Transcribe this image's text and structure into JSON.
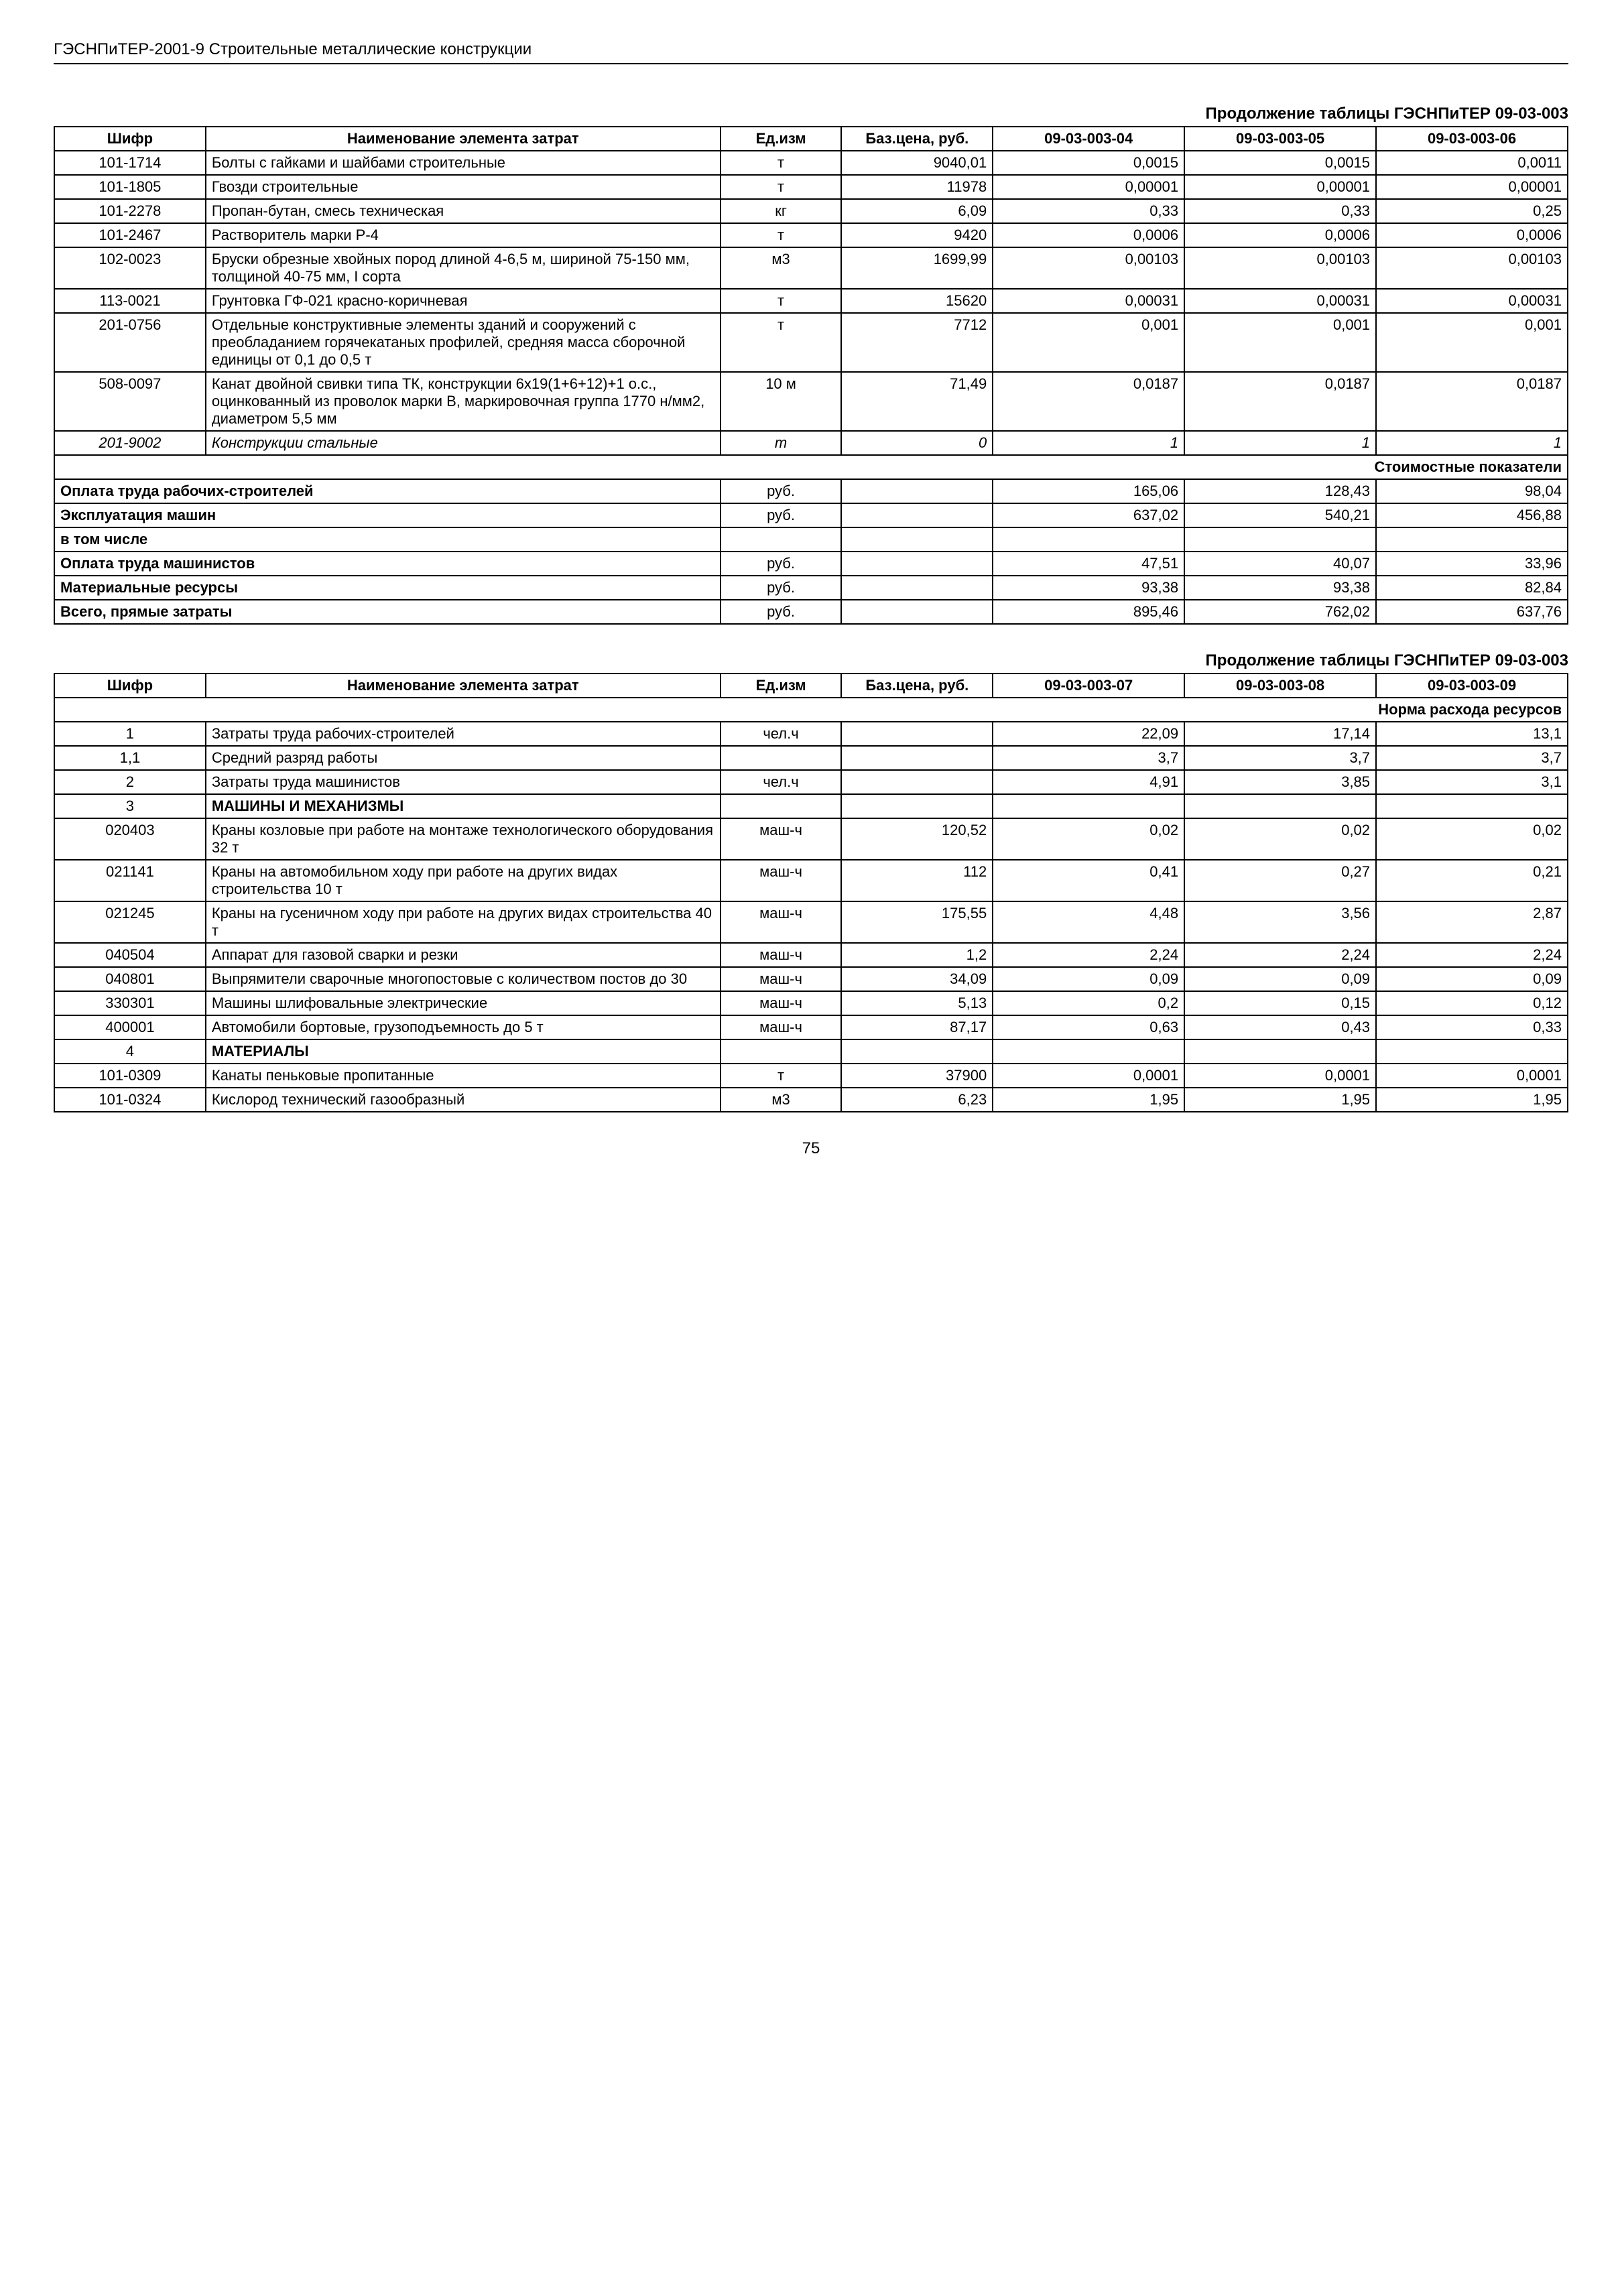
{
  "header": "ГЭСНПиТЕР-2001-9 Строительные металлические конструкции",
  "page_number": "75",
  "table1": {
    "caption": "Продолжение таблицы ГЭСНПиТЕР 09-03-003",
    "subcaption": "Стоимостные показатели",
    "headers": {
      "code": "Шифр",
      "name": "Наименование элемента затрат",
      "unit": "Ед.изм",
      "price": "Баз.цена, руб.",
      "c1": "09-03-003-04",
      "c2": "09-03-003-05",
      "c3": "09-03-003-06"
    },
    "rows": [
      {
        "code": "101-1714",
        "name": "Болты с гайками и шайбами строительные",
        "unit": "т",
        "price": "9040,01",
        "v1": "0,0015",
        "v2": "0,0015",
        "v3": "0,0011"
      },
      {
        "code": "101-1805",
        "name": "Гвозди строительные",
        "unit": "т",
        "price": "11978",
        "v1": "0,00001",
        "v2": "0,00001",
        "v3": "0,00001"
      },
      {
        "code": "101-2278",
        "name": "Пропан-бутан, смесь техническая",
        "unit": "кг",
        "price": "6,09",
        "v1": "0,33",
        "v2": "0,33",
        "v3": "0,25"
      },
      {
        "code": "101-2467",
        "name": "Растворитель марки Р-4",
        "unit": "т",
        "price": "9420",
        "v1": "0,0006",
        "v2": "0,0006",
        "v3": "0,0006"
      },
      {
        "code": "102-0023",
        "name": "Бруски обрезные хвойных пород длиной 4-6,5 м, шириной 75-150 мм, толщиной 40-75 мм, I сорта",
        "unit": "м3",
        "price": "1699,99",
        "v1": "0,00103",
        "v2": "0,00103",
        "v3": "0,00103"
      },
      {
        "code": "113-0021",
        "name": "Грунтовка ГФ-021 красно-коричневая",
        "unit": "т",
        "price": "15620",
        "v1": "0,00031",
        "v2": "0,00031",
        "v3": "0,00031"
      },
      {
        "code": "201-0756",
        "name": "Отдельные конструктивные элементы зданий и сооружений с преобладанием горячекатаных профилей, средняя масса сборочной единицы от 0,1 до 0,5 т",
        "unit": "т",
        "price": "7712",
        "v1": "0,001",
        "v2": "0,001",
        "v3": "0,001"
      },
      {
        "code": "508-0097",
        "name": "Канат двойной свивки типа ТК, конструкции 6х19(1+6+12)+1 о.с., оцинкованный из проволок марки В, маркировочная группа 1770 н/мм2, диаметром 5,5 мм",
        "unit": "10 м",
        "price": "71,49",
        "v1": "0,0187",
        "v2": "0,0187",
        "v3": "0,0187"
      },
      {
        "code": "201-9002",
        "name": "Конструкции стальные",
        "unit": "т",
        "price": "0",
        "v1": "1",
        "v2": "1",
        "v3": "1",
        "italic": true
      }
    ],
    "summary": [
      {
        "label": "Оплата труда рабочих-строителей",
        "unit": "руб.",
        "v1": "165,06",
        "v2": "128,43",
        "v3": "98,04"
      },
      {
        "label": "Эксплуатация машин",
        "unit": "руб.",
        "v1": "637,02",
        "v2": "540,21",
        "v3": "456,88"
      },
      {
        "label": "в том числе",
        "unit": "",
        "v1": "",
        "v2": "",
        "v3": ""
      },
      {
        "label": "Оплата труда машинистов",
        "unit": "руб.",
        "v1": "47,51",
        "v2": "40,07",
        "v3": "33,96"
      },
      {
        "label": "Материальные ресурсы",
        "unit": "руб.",
        "v1": "93,38",
        "v2": "93,38",
        "v3": "82,84"
      },
      {
        "label": "Всего, прямые затраты",
        "unit": "руб.",
        "v1": "895,46",
        "v2": "762,02",
        "v3": "637,76"
      }
    ]
  },
  "table2": {
    "caption": "Продолжение таблицы ГЭСНПиТЕР 09-03-003",
    "subcaption": "Норма расхода ресурсов",
    "headers": {
      "code": "Шифр",
      "name": "Наименование элемента затрат",
      "unit": "Ед.изм",
      "price": "Баз.цена, руб.",
      "c1": "09-03-003-07",
      "c2": "09-03-003-08",
      "c3": "09-03-003-09"
    },
    "rows": [
      {
        "code": "1",
        "name": "Затраты труда рабочих-строителей",
        "unit": "чел.ч",
        "price": "",
        "v1": "22,09",
        "v2": "17,14",
        "v3": "13,1"
      },
      {
        "code": "1,1",
        "name": "Средний разряд работы",
        "unit": "",
        "price": "",
        "v1": "3,7",
        "v2": "3,7",
        "v3": "3,7"
      },
      {
        "code": "2",
        "name": "Затраты труда машинистов",
        "unit": "чел.ч",
        "price": "",
        "v1": "4,91",
        "v2": "3,85",
        "v3": "3,1"
      },
      {
        "code": "3",
        "name": "МАШИНЫ И МЕХАНИЗМЫ",
        "unit": "",
        "price": "",
        "v1": "",
        "v2": "",
        "v3": "",
        "section": true
      },
      {
        "code": "020403",
        "name": "Краны козловые при работе на монтаже технологического оборудования 32 т",
        "unit": "маш-ч",
        "price": "120,52",
        "v1": "0,02",
        "v2": "0,02",
        "v3": "0,02"
      },
      {
        "code": "021141",
        "name": "Краны на автомобильном ходу при работе на других видах строительства 10 т",
        "unit": "маш-ч",
        "price": "112",
        "v1": "0,41",
        "v2": "0,27",
        "v3": "0,21"
      },
      {
        "code": "021245",
        "name": "Краны на гусеничном ходу при работе на других видах строительства 40 т",
        "unit": "маш-ч",
        "price": "175,55",
        "v1": "4,48",
        "v2": "3,56",
        "v3": "2,87"
      },
      {
        "code": "040504",
        "name": "Аппарат для газовой сварки и резки",
        "unit": "маш-ч",
        "price": "1,2",
        "v1": "2,24",
        "v2": "2,24",
        "v3": "2,24"
      },
      {
        "code": "040801",
        "name": "Выпрямители сварочные многопостовые с количеством постов до 30",
        "unit": "маш-ч",
        "price": "34,09",
        "v1": "0,09",
        "v2": "0,09",
        "v3": "0,09"
      },
      {
        "code": "330301",
        "name": "Машины шлифовальные электрические",
        "unit": "маш-ч",
        "price": "5,13",
        "v1": "0,2",
        "v2": "0,15",
        "v3": "0,12"
      },
      {
        "code": "400001",
        "name": "Автомобили бортовые, грузоподъемность до 5 т",
        "unit": "маш-ч",
        "price": "87,17",
        "v1": "0,63",
        "v2": "0,43",
        "v3": "0,33"
      },
      {
        "code": "4",
        "name": "МАТЕРИАЛЫ",
        "unit": "",
        "price": "",
        "v1": "",
        "v2": "",
        "v3": "",
        "section": true
      },
      {
        "code": "101-0309",
        "name": "Канаты пеньковые пропитанные",
        "unit": "т",
        "price": "37900",
        "v1": "0,0001",
        "v2": "0,0001",
        "v3": "0,0001"
      },
      {
        "code": "101-0324",
        "name": "Кислород технический газообразный",
        "unit": "м3",
        "price": "6,23",
        "v1": "1,95",
        "v2": "1,95",
        "v3": "1,95"
      }
    ]
  }
}
